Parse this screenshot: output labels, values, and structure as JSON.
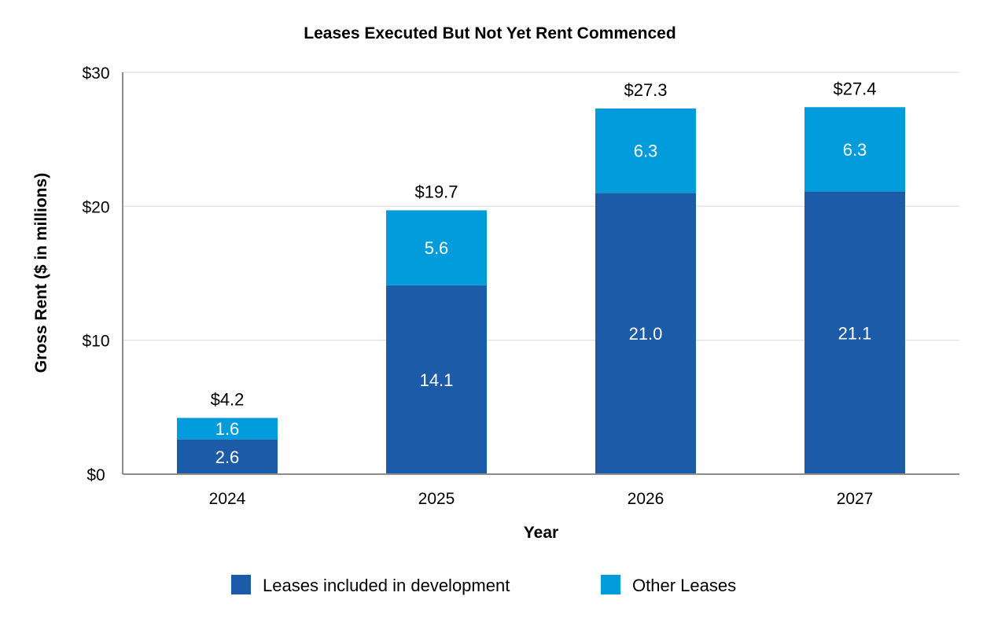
{
  "chart_data": {
    "type": "bar",
    "stacked": true,
    "title": "Leases Executed But Not Yet Rent Commenced",
    "xlabel": "Year",
    "ylabel": "Gross Rent ($ in millions)",
    "ylim": [
      0,
      30
    ],
    "yticks": [
      0,
      10,
      20,
      30
    ],
    "ytick_labels": [
      "$0",
      "$10",
      "$20",
      "$30"
    ],
    "grid": true,
    "legend_placement": "bottom",
    "categories": [
      "2024",
      "2025",
      "2026",
      "2027"
    ],
    "series": [
      {
        "name": "Leases included in development",
        "color": "#1b5ba8",
        "values": [
          2.6,
          14.1,
          21.0,
          21.1
        ],
        "labels": [
          "2.6",
          "14.1",
          "21.0",
          "21.1"
        ]
      },
      {
        "name": "Other Leases",
        "color": "#009bdb",
        "values": [
          1.6,
          5.6,
          6.3,
          6.3
        ],
        "labels": [
          "1.6",
          "5.6",
          "6.3",
          "6.3"
        ]
      }
    ],
    "totals": [
      4.2,
      19.7,
      27.3,
      27.4
    ],
    "total_labels": [
      "$4.2",
      "$19.7",
      "$27.3",
      "$27.4"
    ]
  }
}
